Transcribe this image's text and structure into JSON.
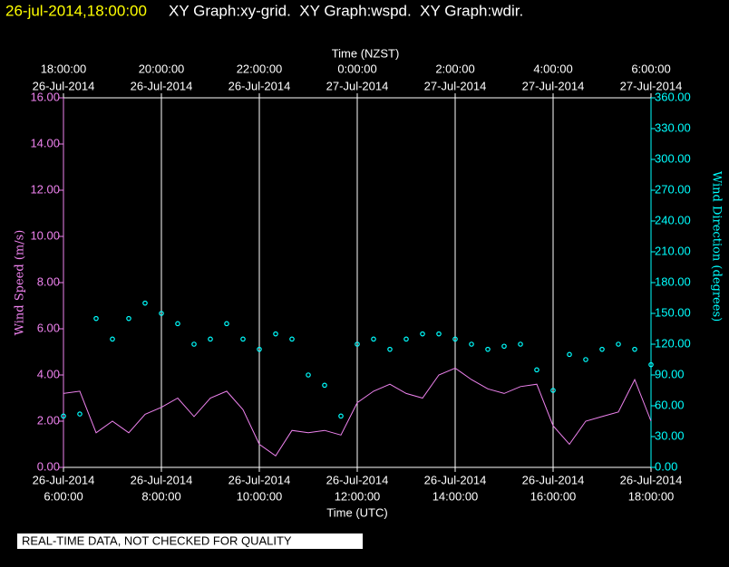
{
  "chart_data": {
    "type": "line",
    "title": "26-jul-2014,18:00:00",
    "subtitle": "XY Graph:xy-grid.  XY Graph:wspd.  XY Graph:wdir.",
    "annotation": "REAL-TIME DATA, NOT CHECKED FOR QUALITY",
    "xlabel": "Time (UTC)",
    "x2label": "Time (NZST)",
    "ylabel": "Wind Speed (m/s)",
    "y2label": "Wind Direction (degrees)",
    "grid": true,
    "xlim": [
      "2014-07-26T06:00:00",
      "2014-07-26T18:00:00"
    ],
    "xticks": [
      {
        "value": "2014-07-26T06:00:00",
        "label": [
          "26-Jul-2014",
          "6:00:00"
        ]
      },
      {
        "value": "2014-07-26T08:00:00",
        "label": [
          "26-Jul-2014",
          "8:00:00"
        ]
      },
      {
        "value": "2014-07-26T10:00:00",
        "label": [
          "26-Jul-2014",
          "10:00:00"
        ]
      },
      {
        "value": "2014-07-26T12:00:00",
        "label": [
          "26-Jul-2014",
          "12:00:00"
        ]
      },
      {
        "value": "2014-07-26T14:00:00",
        "label": [
          "26-Jul-2014",
          "14:00:00"
        ]
      },
      {
        "value": "2014-07-26T16:00:00",
        "label": [
          "26-Jul-2014",
          "16:00:00"
        ]
      },
      {
        "value": "2014-07-26T18:00:00",
        "label": [
          "26-Jul-2014",
          "18:00:00"
        ]
      }
    ],
    "x2ticks": [
      {
        "value": "2014-07-26T06:00:00",
        "label": [
          "18:00:00",
          "26-Jul-2014"
        ]
      },
      {
        "value": "2014-07-26T08:00:00",
        "label": [
          "20:00:00",
          "26-Jul-2014"
        ]
      },
      {
        "value": "2014-07-26T10:00:00",
        "label": [
          "22:00:00",
          "26-Jul-2014"
        ]
      },
      {
        "value": "2014-07-26T12:00:00",
        "label": [
          "0:00:00",
          "27-Jul-2014"
        ]
      },
      {
        "value": "2014-07-26T14:00:00",
        "label": [
          "2:00:00",
          "27-Jul-2014"
        ]
      },
      {
        "value": "2014-07-26T16:00:00",
        "label": [
          "4:00:00",
          "27-Jul-2014"
        ]
      },
      {
        "value": "2014-07-26T18:00:00",
        "label": [
          "6:00:00",
          "27-Jul-2014"
        ]
      }
    ],
    "ylim": [
      0,
      16
    ],
    "yticks": [
      {
        "value": 0,
        "label": "0.00"
      },
      {
        "value": 2,
        "label": "2.00"
      },
      {
        "value": 4,
        "label": "4.00"
      },
      {
        "value": 6,
        "label": "6.00"
      },
      {
        "value": 8,
        "label": "8.00"
      },
      {
        "value": 10,
        "label": "10.00"
      },
      {
        "value": 12,
        "label": "12.00"
      },
      {
        "value": 14,
        "label": "14.00"
      },
      {
        "value": 16,
        "label": "16.00"
      }
    ],
    "y2lim": [
      0,
      360
    ],
    "y2ticks": [
      {
        "value": 0,
        "label": "0.00"
      },
      {
        "value": 30,
        "label": "30.00"
      },
      {
        "value": 60,
        "label": "60.00"
      },
      {
        "value": 90,
        "label": "90.00"
      },
      {
        "value": 120,
        "label": "120.00"
      },
      {
        "value": 150,
        "label": "150.00"
      },
      {
        "value": 180,
        "label": "180.00"
      },
      {
        "value": 210,
        "label": "210.00"
      },
      {
        "value": 240,
        "label": "240.00"
      },
      {
        "value": 270,
        "label": "270.00"
      },
      {
        "value": 300,
        "label": "300.00"
      },
      {
        "value": 330,
        "label": "330.00"
      },
      {
        "value": 360,
        "label": "360.00"
      }
    ],
    "x": [
      "2014-07-26T06:00:00",
      "2014-07-26T06:20:00",
      "2014-07-26T06:40:00",
      "2014-07-26T07:00:00",
      "2014-07-26T07:20:00",
      "2014-07-26T07:40:00",
      "2014-07-26T08:00:00",
      "2014-07-26T08:20:00",
      "2014-07-26T08:40:00",
      "2014-07-26T09:00:00",
      "2014-07-26T09:20:00",
      "2014-07-26T09:40:00",
      "2014-07-26T10:00:00",
      "2014-07-26T10:20:00",
      "2014-07-26T10:40:00",
      "2014-07-26T11:00:00",
      "2014-07-26T11:20:00",
      "2014-07-26T11:40:00",
      "2014-07-26T12:00:00",
      "2014-07-26T12:20:00",
      "2014-07-26T12:40:00",
      "2014-07-26T13:00:00",
      "2014-07-26T13:20:00",
      "2014-07-26T13:40:00",
      "2014-07-26T14:00:00",
      "2014-07-26T14:20:00",
      "2014-07-26T14:40:00",
      "2014-07-26T15:00:00",
      "2014-07-26T15:20:00",
      "2014-07-26T15:40:00",
      "2014-07-26T16:00:00",
      "2014-07-26T16:20:00",
      "2014-07-26T16:40:00",
      "2014-07-26T17:00:00",
      "2014-07-26T17:20:00",
      "2014-07-26T17:40:00",
      "2014-07-26T18:00:00"
    ],
    "series": [
      {
        "name": "wspd",
        "type": "line",
        "axis": "y",
        "color": "#ee82ee",
        "values": [
          3.2,
          3.3,
          1.5,
          2.0,
          1.5,
          2.3,
          2.6,
          3.0,
          2.2,
          3.0,
          3.3,
          2.5,
          1.0,
          0.5,
          1.6,
          1.5,
          1.6,
          1.4,
          2.8,
          3.3,
          3.6,
          3.2,
          3.0,
          4.0,
          4.3,
          3.8,
          3.4,
          3.2,
          3.5,
          3.6,
          1.8,
          1.0,
          2.0,
          2.2,
          2.4,
          3.8,
          2.0
        ]
      },
      {
        "name": "wdir",
        "type": "scatter",
        "axis": "y2",
        "color": "#00ffff",
        "values": [
          50,
          52,
          145,
          125,
          145,
          160,
          150,
          140,
          120,
          125,
          140,
          125,
          115,
          130,
          125,
          90,
          80,
          50,
          120,
          125,
          115,
          125,
          130,
          130,
          125,
          120,
          115,
          118,
          120,
          95,
          75,
          110,
          105,
          115,
          120,
          115,
          100
        ]
      }
    ]
  }
}
